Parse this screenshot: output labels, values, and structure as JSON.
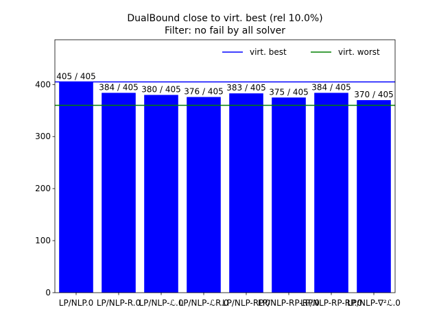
{
  "chart_data": {
    "type": "bar",
    "title_line1": "DualBound close to virt. best (rel 10.0%)",
    "title_line2": "Filter: no fail by all solver",
    "categories": [
      "LP/NLP.0",
      "LP/NLP-R.0",
      "LP/NLP-ℒ.0",
      "LP/NLP-ℒR.0",
      "LP/NLP-RP.0",
      "LP/NLP-RP-RP.0",
      "LP/NLP-RP-RP.0",
      "LP/NLP-∇²ℒ.0"
    ],
    "values": [
      405,
      384,
      380,
      376,
      383,
      375,
      384,
      370
    ],
    "bar_labels": [
      "405 / 405",
      "384 / 405",
      "380 / 405",
      "376 / 405",
      "383 / 405",
      "375 / 405",
      "384 / 405",
      "370 / 405"
    ],
    "bar_color": "#0000ff",
    "ylim": [
      0,
      486
    ],
    "yticks": [
      0,
      100,
      200,
      300,
      400
    ],
    "reference_lines": [
      {
        "name": "virt. best",
        "value": 405,
        "color": "#0000ff"
      },
      {
        "name": "virt. worst",
        "value": 360,
        "color": "#008000"
      }
    ],
    "legend_position": "top-right",
    "grid": false,
    "xlabel": "",
    "ylabel": ""
  }
}
